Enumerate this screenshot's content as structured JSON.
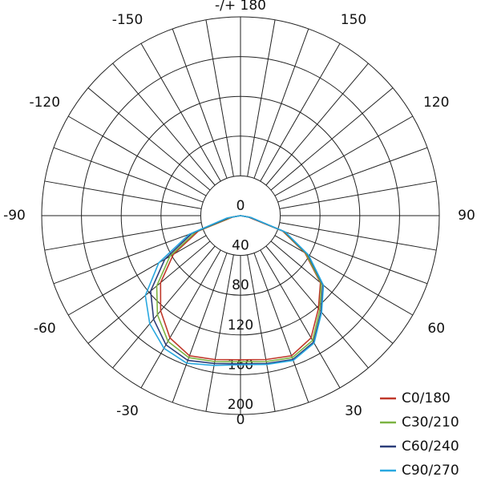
{
  "chart_data": {
    "type": "polar",
    "x": [
      -90,
      -80,
      -70,
      -60,
      -50,
      -40,
      -30,
      -20,
      -10,
      0,
      10,
      20,
      30,
      40,
      50,
      60,
      70,
      80,
      90
    ],
    "series": [
      {
        "name": "C0/180",
        "color": "#c0392b",
        "values": [
          0,
          8,
          45,
          78,
          105,
          125,
          142,
          150,
          147,
          145,
          147,
          150,
          142,
          122,
          105,
          75,
          45,
          8,
          0
        ]
      },
      {
        "name": "C30/210",
        "color": "#7cb342",
        "values": [
          0,
          10,
          48,
          82,
          110,
          130,
          146,
          152,
          149,
          147,
          149,
          152,
          145,
          124,
          106,
          76,
          46,
          9,
          0
        ]
      },
      {
        "name": "C60/240",
        "color": "#2c3e7a",
        "values": [
          0,
          12,
          52,
          88,
          118,
          136,
          150,
          155,
          151,
          149,
          151,
          154,
          147,
          126,
          108,
          78,
          47,
          10,
          0
        ]
      },
      {
        "name": "C90/270",
        "color": "#29a8e0",
        "values": [
          0,
          14,
          55,
          95,
          125,
          142,
          154,
          158,
          153,
          150,
          152,
          155,
          148,
          127,
          109,
          79,
          48,
          11,
          0
        ]
      }
    ],
    "ylim": [
      0,
      200
    ],
    "yticks": [
      0,
      40,
      80,
      120,
      160,
      200
    ],
    "xticks": [
      0,
      30,
      60,
      90,
      120,
      150,
      {
        "value": 180,
        "label": "-/+ 180"
      },
      -150,
      -120,
      -90,
      -60,
      -30
    ],
    "grid": true,
    "legend": "lower right"
  }
}
